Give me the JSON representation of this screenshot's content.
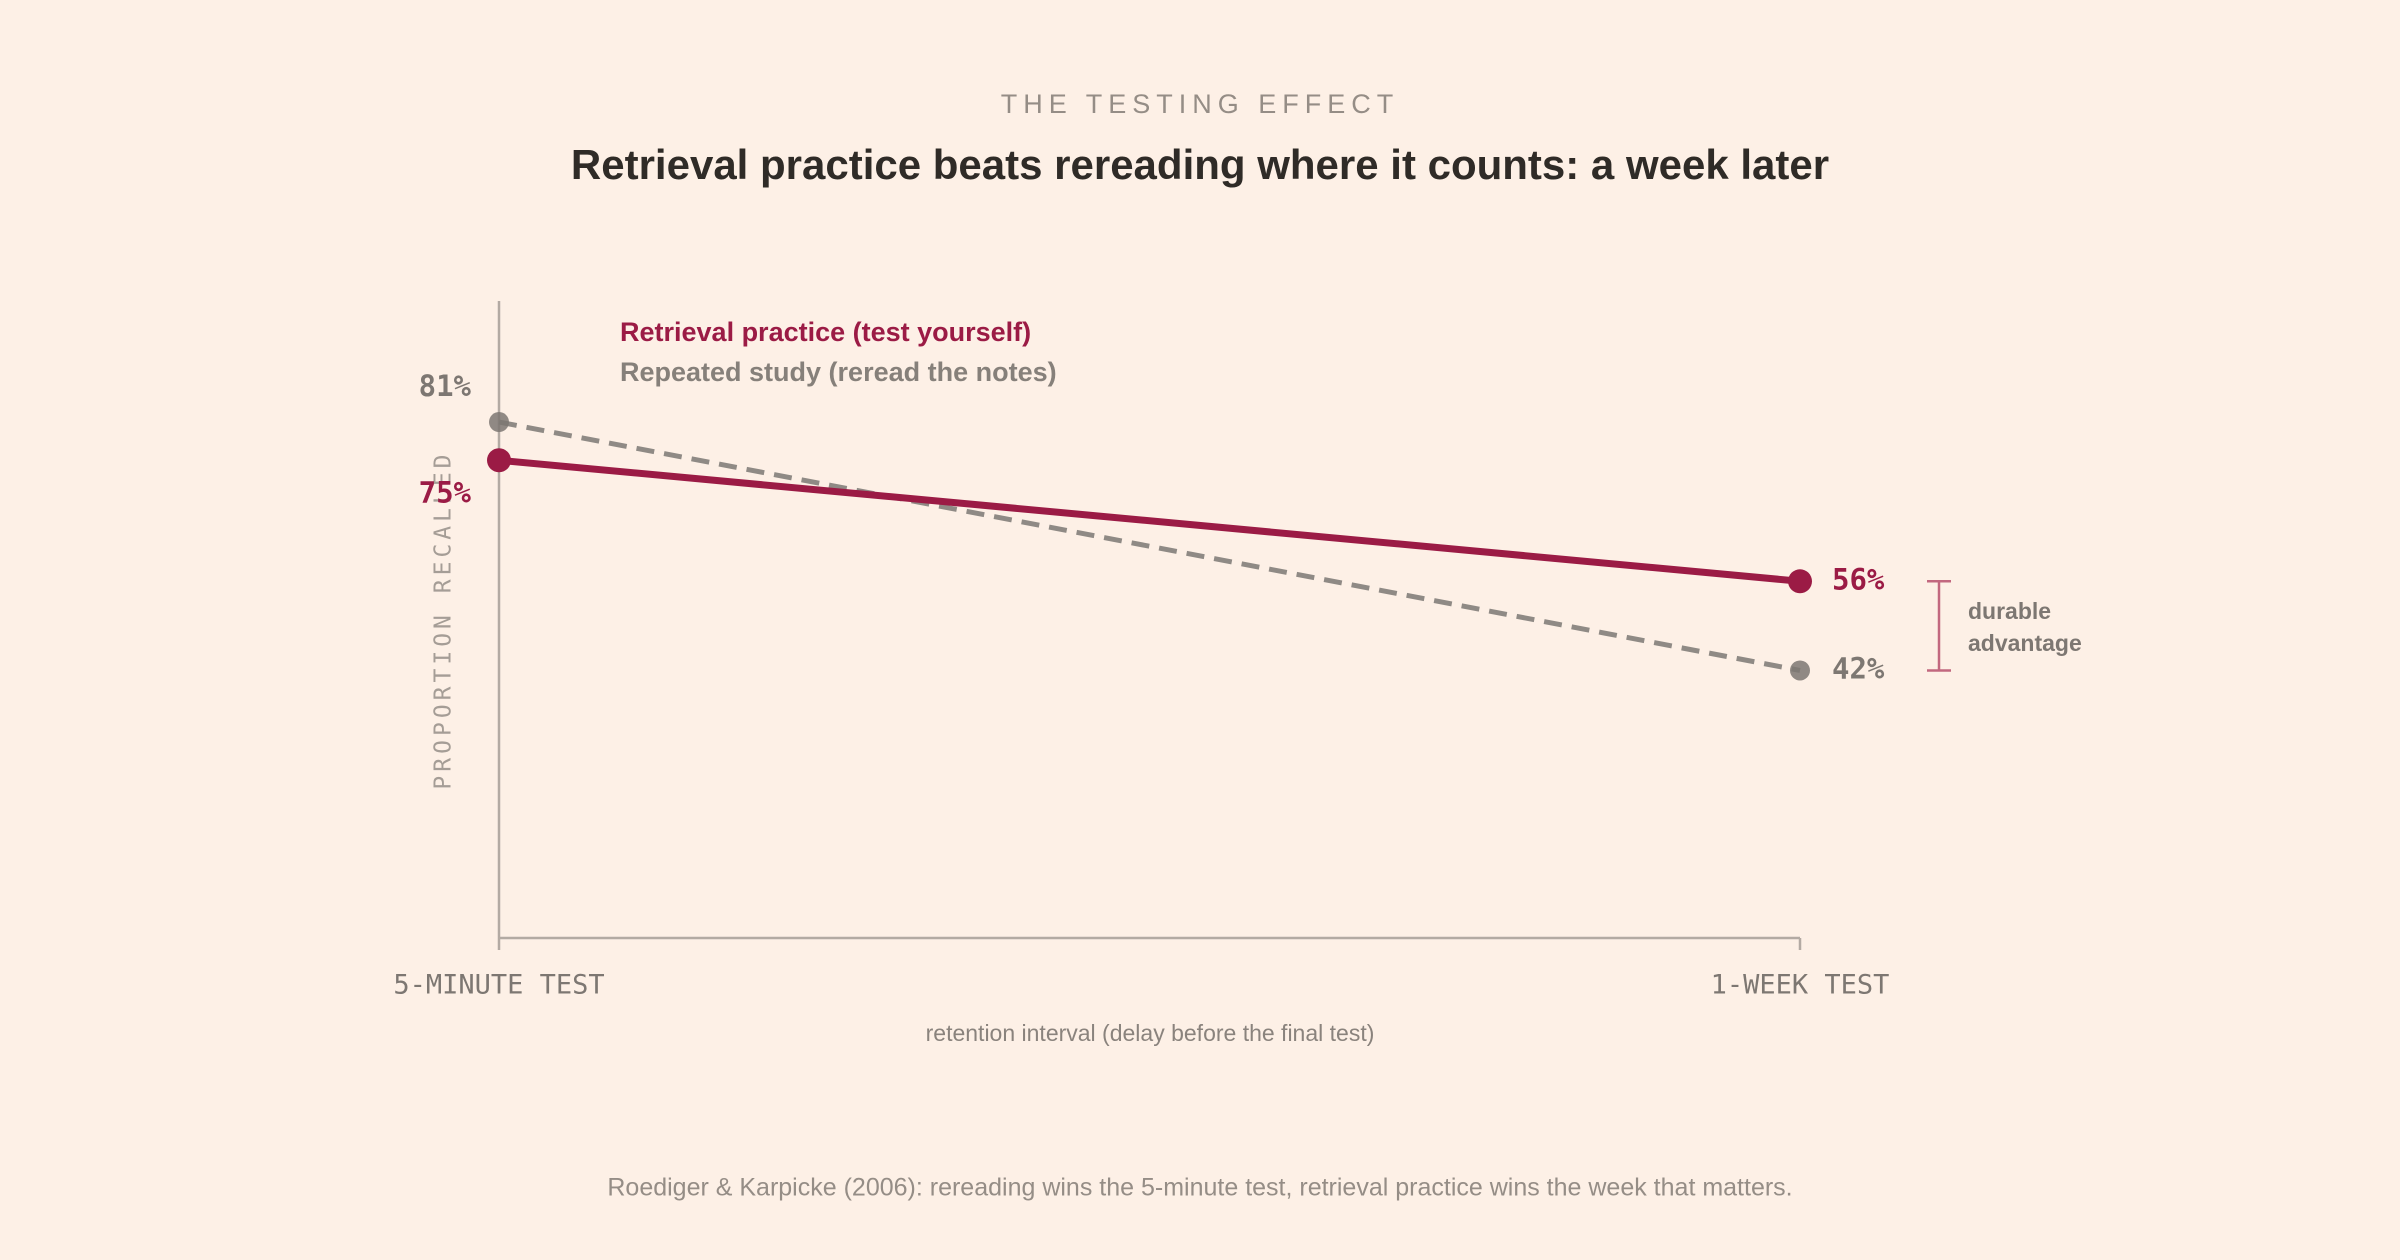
{
  "chart_data": {
    "type": "line",
    "kicker": "THE TESTING EFFECT",
    "title": "Retrieval practice beats rereading where it counts: a week later",
    "categories": [
      "5-MINUTE TEST",
      "1-WEEK TEST"
    ],
    "series": [
      {
        "name": "Retrieval practice (test yourself)",
        "color": "#9b1b45",
        "style": "solid",
        "values": [
          75,
          56
        ],
        "value_labels": [
          "75%",
          "56%"
        ]
      },
      {
        "name": "Repeated study (reread the notes)",
        "color": "#8f8a85",
        "style": "dashed",
        "values": [
          81,
          42
        ],
        "value_labels": [
          "81%",
          "42%"
        ]
      }
    ],
    "ylim": [
      0,
      100
    ],
    "y_label": "PROPORTION RECALLED",
    "x_label": "retention interval (delay before the final test)",
    "annotation": [
      "durable",
      "advantage"
    ],
    "footnote": "Roediger & Karpicke (2006): rereading wins the 5-minute test, retrieval practice wins the week that matters."
  }
}
